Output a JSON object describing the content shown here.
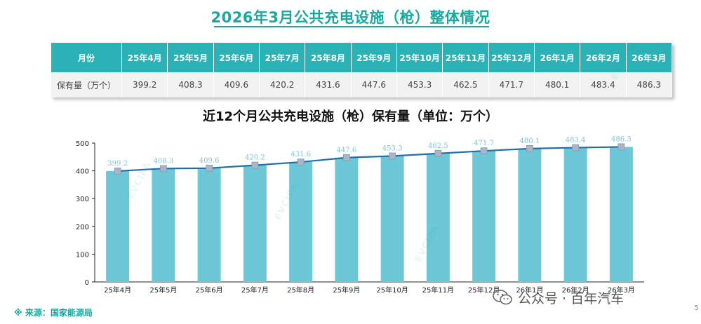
{
  "title": "2026年3月公共充电设施（枪）整体情况",
  "table": {
    "header_label": "月份",
    "row_label": "保有量（万个）",
    "months": [
      "25年4月",
      "25年5月",
      "25年6月",
      "25年7月",
      "25年8月",
      "25年9月",
      "25年10月",
      "25年11月",
      "25年12月",
      "26年1月",
      "26年2月",
      "26年3月"
    ],
    "values": [
      "399.2",
      "408.3",
      "409.6",
      "420.2",
      "431.6",
      "447.6",
      "453.3",
      "462.5",
      "471.7",
      "480.1",
      "483.4",
      "486.3"
    ]
  },
  "chart_data": {
    "type": "bar",
    "title": "近12个月公共充电设施（枪）保有量（单位：万个）",
    "categories": [
      "25年4月",
      "25年5月",
      "25年6月",
      "25年7月",
      "25年8月",
      "25年9月",
      "25年10月",
      "25年11月",
      "25年12月",
      "26年1月",
      "26年2月",
      "26年3月"
    ],
    "values": [
      399.2,
      408.3,
      409.6,
      420.2,
      431.6,
      447.6,
      453.3,
      462.5,
      471.7,
      480.1,
      483.4,
      486.3
    ],
    "line_overlay": true,
    "ylim": [
      0,
      500
    ],
    "yticks": [
      0,
      100,
      200,
      300,
      400,
      500
    ],
    "grid": false,
    "bar_color": "#6cc7d6",
    "line_color": "#1f6fa8",
    "marker_color": "#a9b6c8",
    "label_color": "#7fc3d3"
  },
  "source": "※ 来源：国家能源局",
  "page_number": "5",
  "wechat_label": "公众号 · 百年汽车",
  "watermark": "EVCIPA"
}
